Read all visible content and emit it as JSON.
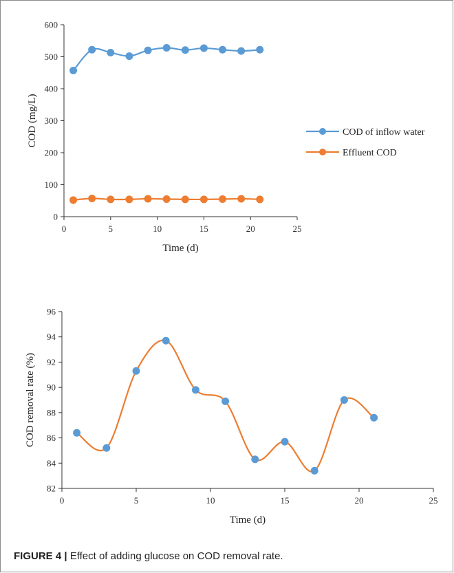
{
  "colors": {
    "blue": "#5b9bd5",
    "orange": "#ed7d31",
    "axis": "#333333"
  },
  "caption": {
    "label": "FIGURE 4 |",
    "text": " Effect of adding glucose on COD removal rate."
  },
  "chart_data": [
    {
      "type": "line",
      "title": "",
      "xlabel": "Time (d)",
      "ylabel": "COD (mg/L)",
      "xlim": [
        0,
        25
      ],
      "ylim": [
        0,
        600
      ],
      "xticks": [
        0,
        5,
        10,
        15,
        20,
        25
      ],
      "yticks": [
        0,
        100,
        200,
        300,
        400,
        500,
        600
      ],
      "grid": false,
      "legend_position": "right",
      "x": [
        1,
        3,
        5,
        7,
        9,
        11,
        13,
        15,
        17,
        19,
        21
      ],
      "series": [
        {
          "name": "COD of inflow water",
          "color": "#5b9bd5",
          "values": [
            457,
            522,
            513,
            502,
            520,
            528,
            521,
            527,
            522,
            518,
            522
          ]
        },
        {
          "name": "Effluent COD",
          "color": "#ed7d31",
          "values": [
            52,
            57,
            54,
            54,
            56,
            55,
            54,
            54,
            55,
            56,
            54
          ]
        }
      ]
    },
    {
      "type": "line",
      "title": "",
      "xlabel": "Time (d)",
      "ylabel": "COD removal rate (%)",
      "xlim": [
        0,
        25
      ],
      "ylim": [
        82,
        96
      ],
      "xticks": [
        0,
        5,
        10,
        15,
        20,
        25
      ],
      "yticks": [
        82,
        84,
        86,
        88,
        90,
        92,
        94,
        96
      ],
      "grid": false,
      "legend_position": "none",
      "x": [
        1,
        3,
        5,
        7,
        9,
        11,
        13,
        15,
        17,
        19,
        21
      ],
      "series": [
        {
          "color": "#ed7d31",
          "marker_color": "#5b9bd5",
          "values": [
            86.4,
            85.2,
            91.3,
            93.7,
            89.8,
            88.9,
            84.3,
            85.7,
            83.4,
            89.0,
            87.6
          ]
        }
      ]
    }
  ]
}
